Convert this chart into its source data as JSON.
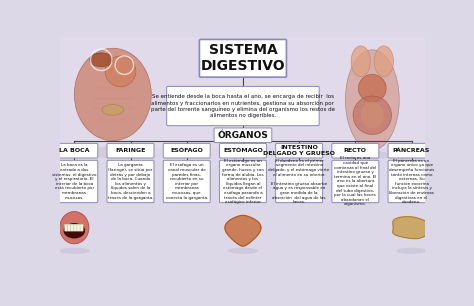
{
  "title": "SISTEMA\nDIGESTIVO",
  "subtitle": "Se entiende desde la boca hasta el ano, se encarga de recibir  los\nalimentos y fraccionarlos en nutrientes, gestiona su absorción por\nparte del torrente sanguíneo y elimina del organismo los restos de\nalimentos no digeribles.",
  "organos_label": "ÓRGANOS",
  "bg_color": "#ddd8e8",
  "box_fill": "#ffffff",
  "box_edge": "#8888bb",
  "line_color": "#444444",
  "organs": [
    {
      "title": "LA BOCA",
      "text": "La boca es la\nentrada a dos\nsistemas: el digestivo\ny el respiratorio. El\ninterior de la boca\nestá recubierto por\nmembranas\nmucosas.",
      "has_image": true,
      "img_color": "#c85050"
    },
    {
      "title": "FARINGE",
      "text": "La garganta\n(faringe), se sitúa por\ndetrás y por debajo\nde la boca. Cuando\nlos alimentos y\nlíquidos salen de la\nboca, descienden a\ntravés de la garganta.",
      "has_image": false,
      "img_color": "#c87070"
    },
    {
      "title": "ESÓFAGO",
      "text": "El esófago es un\ncanal muscular de\nparedes finas,\nrecubierto en su\ninterior por\nmembranas\nmucosas, que\nconecta la garganta.",
      "has_image": false,
      "img_color": "#c86060"
    },
    {
      "title": "ESTÓMAGO",
      "text": "El estómago es un\nórgano muscular\ngrande, hueco y con\nforma de alubia. Los\nalimentos y los\nlíquidos llegan al\nestómago desde el\nesófago pasando a\ntravés del esfínter\nesofágico inferior.",
      "has_image": true,
      "img_color": "#c87050"
    },
    {
      "title": "INTESTINO\nDELGADO Y GRUESO",
      "text": "El duodeno es el primer\nsegmento del intestino\ndelgado, y el estómago vierte\nel alimento en su interior.\n\nEl intestino grueso absorbe\nagua y es responsable en\ngran medida de la\nabsorción  del agua de las\nheces.",
      "has_image": false,
      "img_color": "#c86060"
    },
    {
      "title": "RECTO",
      "text": "El recto es una\ncavidad que\ncomienza al final del\nintestino grueso y\ntermina en el ano. El\nano es la abertura\nque existe al final\ndel tubo digestivo,\npor la cual las heces\nabandonan el\norganismo.",
      "has_image": false,
      "img_color": "#c87070"
    },
    {
      "title": "PÁNCREAS",
      "text": "El páncreas es un\nórgano único ya que\ndesempeña funciones\ntanto internas como\nexternas. Su\nfunción exocrina\nincluye la síntesis y\nliberación de enzimas\ndigestivas en el\nduodeno.",
      "has_image": true,
      "img_color": "#c05040"
    }
  ],
  "left_img_color": "#c86050",
  "right_img_color": "#c86050"
}
